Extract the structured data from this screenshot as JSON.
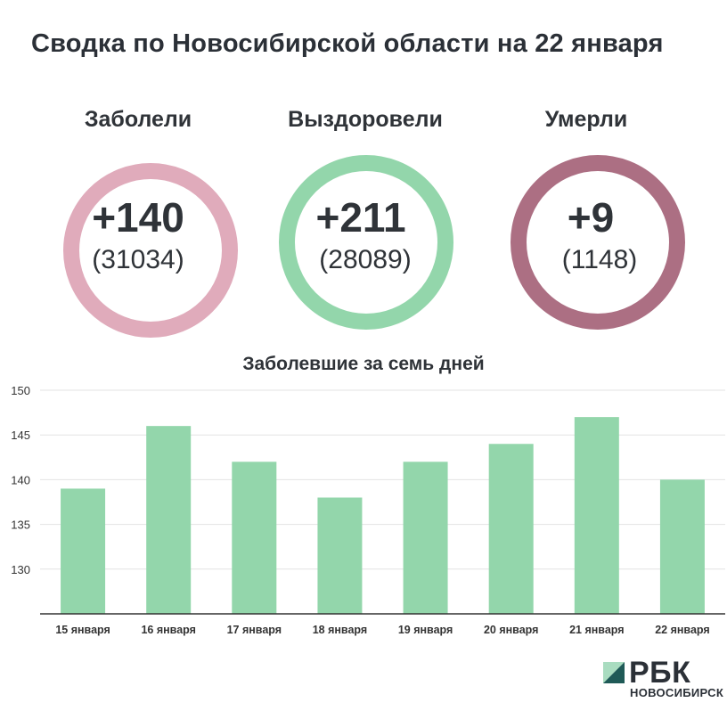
{
  "title": "Сводка по Новосибирской области на 22 января",
  "stats": [
    {
      "label": "Заболели",
      "delta": "+140",
      "total": "(31034)",
      "color": "#e0abbb"
    },
    {
      "label": "Выздоровели",
      "delta": "+211",
      "total": "(28089)",
      "color": "#93d6ab"
    },
    {
      "label": "Умерли",
      "delta": "+9",
      "total": "(1148)",
      "color": "#ac6f83"
    }
  ],
  "chart_data": {
    "type": "bar",
    "title": "Заболевшие за семь дней",
    "categories": [
      "15 января",
      "16 января",
      "17 января",
      "18 января",
      "19 января",
      "20 января",
      "21 января",
      "22 января"
    ],
    "values": [
      139,
      146,
      142,
      138,
      142,
      144,
      147,
      140
    ],
    "yticks": [
      130,
      135,
      140,
      145,
      150
    ],
    "ylim": [
      125,
      150
    ],
    "bar_color": "#93d6ab",
    "grid": true
  },
  "logo": {
    "name": "РБК",
    "sub": "НОВОСИБИРСК"
  }
}
